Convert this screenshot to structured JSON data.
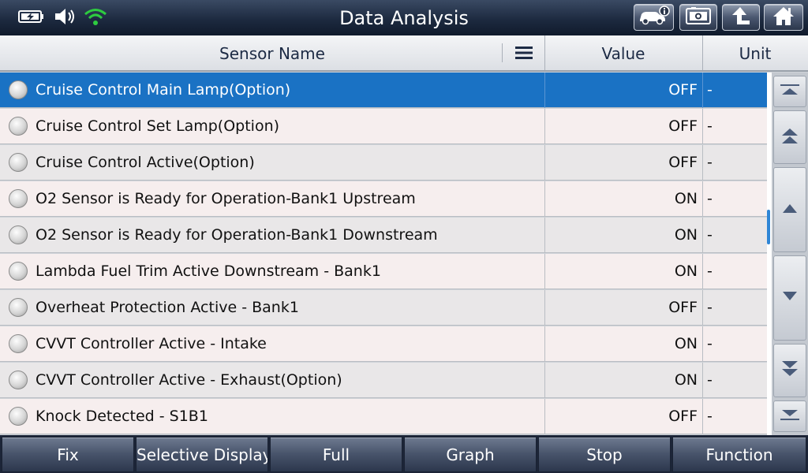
{
  "window": {
    "title": "Data Analysis"
  },
  "status_icons": [
    "battery-charging-icon",
    "speaker-icon",
    "wifi-icon"
  ],
  "toolbar_buttons": [
    "vehicle-info-icon",
    "screenshot-icon",
    "back-arrow-icon",
    "home-icon"
  ],
  "table": {
    "columns": {
      "sensor": "Sensor Name",
      "value": "Value",
      "unit": "Unit"
    },
    "selected_row": 0,
    "rows": [
      {
        "sensor": "Cruise Control Main Lamp(Option)",
        "value": "OFF",
        "unit": "-"
      },
      {
        "sensor": "Cruise Control Set Lamp(Option)",
        "value": "OFF",
        "unit": "-"
      },
      {
        "sensor": "Cruise Control Active(Option)",
        "value": "OFF",
        "unit": "-"
      },
      {
        "sensor": "O2 Sensor is Ready for Operation-Bank1 Upstream",
        "value": "ON",
        "unit": "-"
      },
      {
        "sensor": "O2 Sensor is Ready for Operation-Bank1 Downstream",
        "value": "ON",
        "unit": "-"
      },
      {
        "sensor": "Lambda Fuel Trim Active Downstream - Bank1",
        "value": "ON",
        "unit": "-"
      },
      {
        "sensor": "Overheat Protection Active - Bank1",
        "value": "OFF",
        "unit": "-"
      },
      {
        "sensor": "CVVT Controller Active - Intake",
        "value": "ON",
        "unit": "-"
      },
      {
        "sensor": "CVVT Controller Active - Exhaust(Option)",
        "value": "ON",
        "unit": "-"
      },
      {
        "sensor": "Knock Detected - S1B1",
        "value": "OFF",
        "unit": "-"
      }
    ]
  },
  "scroll_nav": [
    "scroll-top-icon",
    "page-up-icon",
    "line-up-icon",
    "line-down-icon",
    "page-down-icon",
    "scroll-bottom-icon"
  ],
  "bottom_bar": {
    "buttons": [
      "Fix",
      "Selective Display",
      "Full",
      "Graph",
      "Stop",
      "Function"
    ]
  },
  "colors": {
    "selected_row": "#1a72c4",
    "title_bar": "#1d2a40",
    "wifi": "#2ecc40"
  }
}
